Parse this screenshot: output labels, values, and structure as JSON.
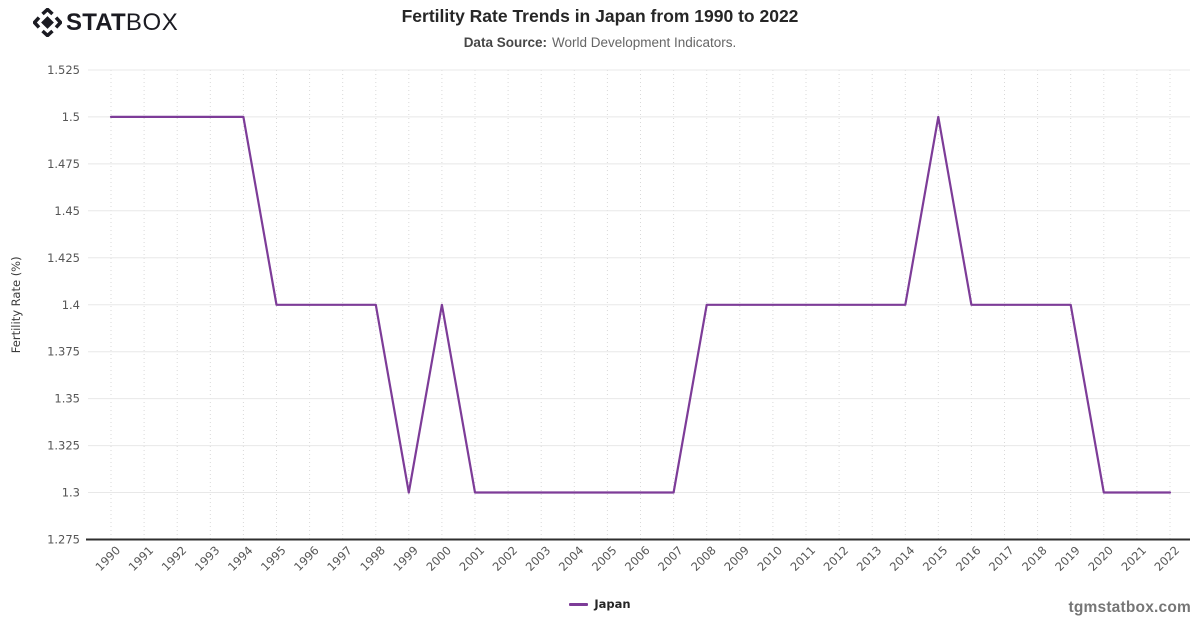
{
  "logo": {
    "text_bold": "STAT",
    "text_light": "BOX",
    "icon": "statbox-gem-icon",
    "color": "#1b1b22"
  },
  "header": {
    "title": "Fertility Rate Trends in Japan from 1990 to 2022",
    "data_source_label": "Data Source:",
    "data_source_value": "World Development Indicators."
  },
  "watermark": "tgmstatbox.com",
  "legend": {
    "items": [
      {
        "label": "Japan",
        "color": "#7d3c98"
      }
    ]
  },
  "chart_data": {
    "type": "line",
    "title": "Fertility Rate Trends in Japan from 1990 to 2022",
    "xlabel": "",
    "ylabel": "Fertility Rate (%)",
    "x": [
      1990,
      1991,
      1992,
      1993,
      1994,
      1995,
      1996,
      1997,
      1998,
      1999,
      2000,
      2001,
      2002,
      2003,
      2004,
      2005,
      2006,
      2007,
      2008,
      2009,
      2010,
      2011,
      2012,
      2013,
      2014,
      2015,
      2016,
      2017,
      2018,
      2019,
      2020,
      2021,
      2022
    ],
    "series": [
      {
        "name": "Japan",
        "color": "#7d3c98",
        "values": [
          1.5,
          1.5,
          1.5,
          1.5,
          1.5,
          1.4,
          1.4,
          1.4,
          1.4,
          1.3,
          1.4,
          1.3,
          1.3,
          1.3,
          1.3,
          1.3,
          1.3,
          1.3,
          1.4,
          1.4,
          1.4,
          1.4,
          1.4,
          1.4,
          1.4,
          1.5,
          1.4,
          1.4,
          1.4,
          1.4,
          1.3,
          1.3,
          1.3
        ]
      }
    ],
    "ylim": [
      1.275,
      1.525
    ],
    "yticks": [
      1.275,
      1.3,
      1.325,
      1.35,
      1.375,
      1.4,
      1.425,
      1.45,
      1.475,
      1.5,
      1.525
    ],
    "ytick_labels": [
      "1.275",
      "1.3",
      "1.325",
      "1.35",
      "1.375",
      "1.4",
      "1.425",
      "1.45",
      "1.475",
      "1.5",
      "1.525"
    ],
    "grid": true,
    "legend_position": "bottom",
    "colors": {
      "axis": "#2e2e2e",
      "h_grid": "#e8e8e8",
      "v_grid": "#d9d9d9",
      "tick_text": "#565656",
      "axis_label_text": "#3c3c3c"
    }
  }
}
